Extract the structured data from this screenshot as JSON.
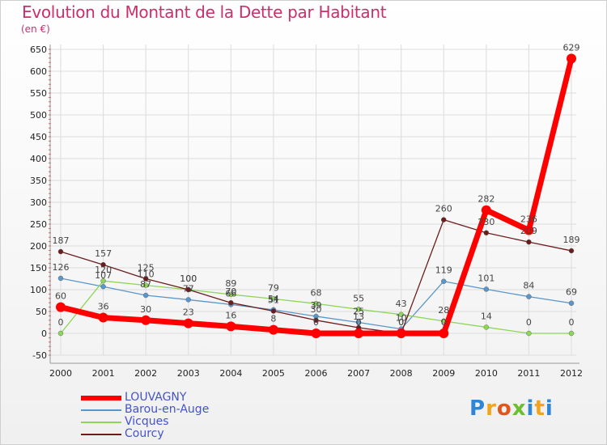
{
  "chart_data": {
    "type": "line",
    "title": "Evolution du Montant de la Dette par Habitant",
    "ylabel": "(en €)",
    "xlabel": "",
    "x": [
      "2000",
      "2001",
      "2002",
      "2003",
      "2004",
      "2005",
      "2006",
      "2007",
      "2008",
      "2009",
      "2010",
      "2011",
      "2012"
    ],
    "ylim": [
      -50,
      650
    ],
    "yticks": [
      -50,
      0,
      50,
      100,
      150,
      200,
      250,
      300,
      350,
      400,
      450,
      500,
      550,
      600,
      650
    ],
    "series": [
      {
        "name": "LOUVAGNY",
        "color": "#ff0000",
        "values": [
          60,
          36,
          30,
          23,
          16,
          8,
          0,
          0,
          0,
          0,
          282,
          236,
          629
        ],
        "thick": true
      },
      {
        "name": "Barou-en-Auge",
        "color": "#5b96c8",
        "values": [
          126,
          107,
          87,
          77,
          66,
          54,
          39,
          25,
          10,
          119,
          101,
          84,
          69
        ]
      },
      {
        "name": "Vicques",
        "color": "#8cd65a",
        "values": [
          0,
          120,
          110,
          100,
          89,
          79,
          68,
          55,
          43,
          28,
          14,
          0,
          0
        ]
      },
      {
        "name": "Courcy",
        "color": "#6b1d1d",
        "values": [
          187,
          157,
          125,
          100,
          70,
          51,
          30,
          13,
          0,
          260,
          230,
          209,
          189
        ]
      }
    ],
    "legend_position": "bottom-left"
  },
  "logo_text": "Proxiti"
}
